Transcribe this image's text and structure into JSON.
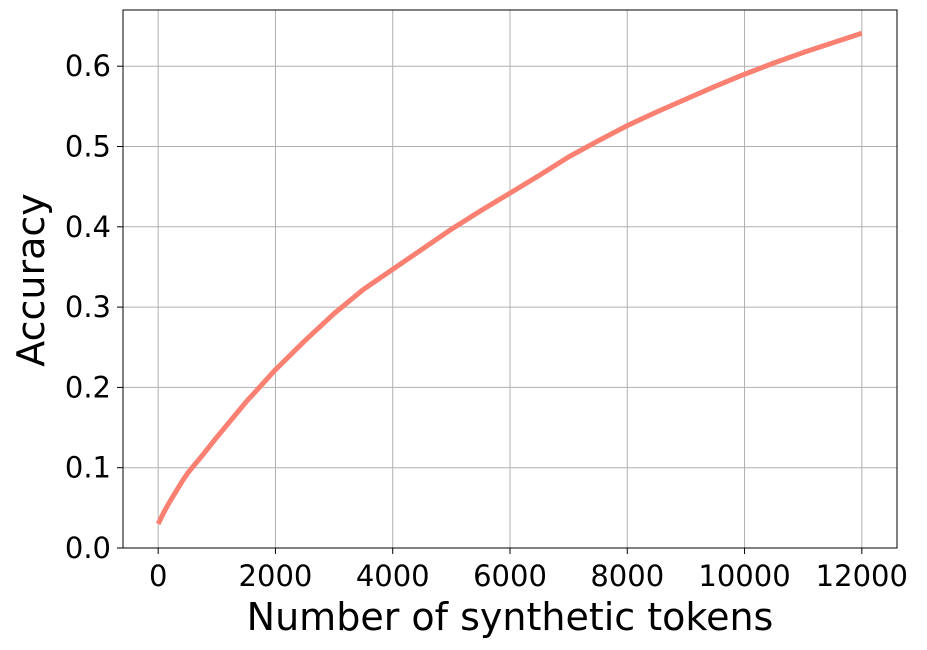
{
  "chart_data": {
    "type": "line",
    "xlabel": "Number of synthetic tokens",
    "ylabel": "Accuracy",
    "x": [
      0,
      100,
      200,
      300,
      400,
      500,
      750,
      1000,
      1500,
      2000,
      2500,
      3000,
      3500,
      4000,
      4500,
      5000,
      5500,
      6000,
      6500,
      7000,
      7500,
      8000,
      8500,
      9000,
      9500,
      10000,
      10500,
      11000,
      11500,
      12000
    ],
    "series": [
      {
        "name": "Accuracy",
        "color": "#fa8072",
        "values": [
          0.03,
          0.045,
          0.058,
          0.07,
          0.082,
          0.093,
          0.115,
          0.138,
          0.182,
          0.222,
          0.258,
          0.292,
          0.322,
          0.347,
          0.372,
          0.397,
          0.42,
          0.442,
          0.464,
          0.487,
          0.507,
          0.526,
          0.543,
          0.559,
          0.575,
          0.59,
          0.604,
          0.617,
          0.629,
          0.641
        ]
      }
    ],
    "xlim": [
      -600,
      12600
    ],
    "ylim": [
      0,
      0.67
    ],
    "xticks": [
      0,
      2000,
      4000,
      6000,
      8000,
      10000,
      12000
    ],
    "yticks": [
      {
        "value": 0,
        "label": "0.0"
      },
      0.1,
      0.2,
      0.3,
      0.4,
      0.5,
      0.6
    ],
    "grid": true
  }
}
